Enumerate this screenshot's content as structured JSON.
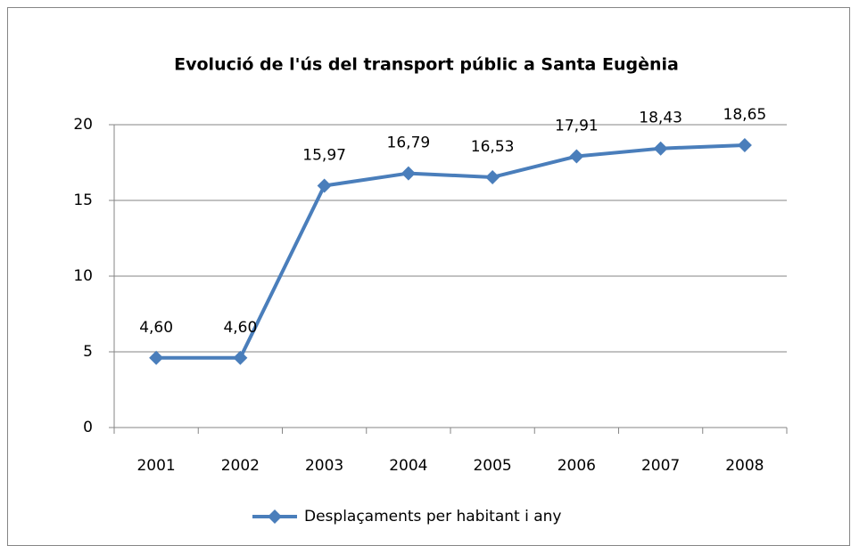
{
  "chart_data": {
    "type": "line",
    "title": "Evolució de l'ús del transport públic a Santa Eugènia",
    "categories": [
      "2001",
      "2002",
      "2003",
      "2004",
      "2005",
      "2006",
      "2007",
      "2008"
    ],
    "series": [
      {
        "name": "Desplaçaments per habitant i any",
        "color": "#4a7ebb",
        "values": [
          4.6,
          4.6,
          15.97,
          16.79,
          16.53,
          17.91,
          18.43,
          18.65
        ],
        "value_labels": [
          "4,60",
          "4,60",
          "15,97",
          "16,79",
          "16,53",
          "17,91",
          "18,43",
          "18,65"
        ]
      }
    ],
    "ylim": [
      0,
      20
    ],
    "yticks": [
      0,
      5,
      10,
      15,
      20
    ],
    "grid": true,
    "legend": "bottom"
  }
}
